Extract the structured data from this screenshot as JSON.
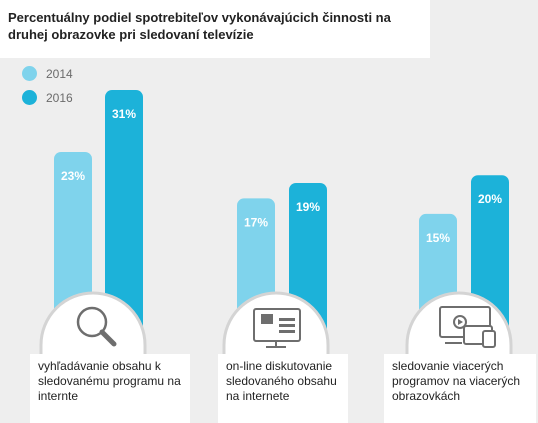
{
  "chart_data": {
    "type": "bar",
    "title": "Percentuálny podiel spotrebiteľov vykonávajúcich činnosti na druhej obrazovke pri sledovaní televízie",
    "categories": [
      "vyhľadávanie obsahu k sledovanému programu na internte",
      "on-line diskutovanie sledovaného obsahu na internete",
      "sledovanie viacerých programov na viacerých obrazovkách"
    ],
    "series": [
      {
        "name": "2014",
        "values": [
          23,
          17,
          15
        ],
        "labels": [
          "23%",
          "17%",
          "15%"
        ],
        "color": "#7fd3ec"
      },
      {
        "name": "2016",
        "values": [
          31,
          19,
          20
        ],
        "labels": [
          "31%",
          "19%",
          "20%"
        ],
        "color": "#1cb2d9"
      }
    ],
    "category_icons": [
      "magnifier-icon",
      "discussion-screen-icon",
      "multiple-screens-icon"
    ],
    "ylim": [
      0,
      31
    ],
    "legend": "top-left",
    "grid": false
  }
}
